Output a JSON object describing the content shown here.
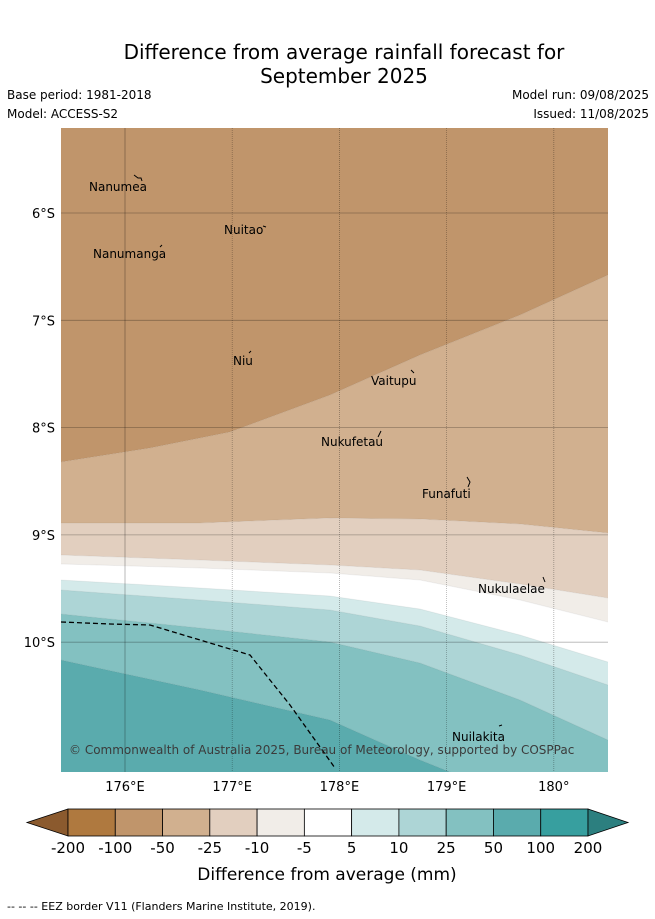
{
  "title_line1": "Difference from average rainfall forecast for",
  "title_line2": "September 2025",
  "base_period": "Base period: 1981-2018",
  "model": "Model: ACCESS-S2",
  "model_run": "Model run: 09/08/2025",
  "issued": "Issued: 11/08/2025",
  "copyright": "© Commonwealth of Australia 2025, Bureau of Meteorology, supported by COSPPac",
  "footer": "-- -- -- EEZ border V11 (Flanders Marine Institute, 2019).",
  "lat_labels": [
    "6°S",
    "7°S",
    "8°S",
    "9°S",
    "10°S"
  ],
  "lon_labels": [
    "176°E",
    "177°E",
    "178°E",
    "179°E",
    "180°"
  ],
  "places": [
    {
      "name": "Nanumea",
      "lon": 175.85,
      "lat": -5.68
    },
    {
      "name": "Nuitao",
      "lon": 177.15,
      "lat": -6.11
    },
    {
      "name": "Nanumanga",
      "lon": 176.3,
      "lat": -6.3
    },
    {
      "name": "Niu",
      "lon": 177.15,
      "lat": -7.31
    },
    {
      "name": "Vaitupu",
      "lon": 178.68,
      "lat": -7.48
    },
    {
      "name": "Nukufetau",
      "lon": 178.38,
      "lat": -8.03
    },
    {
      "name": "Funafuti",
      "lon": 179.2,
      "lat": -8.52
    },
    {
      "name": "Nukulaelae",
      "lon": 179.83,
      "lat": -9.38
    },
    {
      "name": "Nuilakita",
      "lon": 179.5,
      "lat": -10.78
    }
  ],
  "colorbar": {
    "title": "Difference from average (mm)",
    "tick_labels": [
      "-200",
      "-100",
      "-50",
      "-25",
      "-10",
      "-5",
      "5",
      "10",
      "25",
      "50",
      "100",
      "200"
    ],
    "colors": [
      "#af793f",
      "#c0956b",
      "#d1b08f",
      "#e2cfbf",
      "#f1ede8",
      "#ffffff",
      "#d4eaea",
      "#add5d6",
      "#83c1c1",
      "#5aabad",
      "#379f9f"
    ],
    "extend_low": "#8b5a2e",
    "extend_high": "#2c7f7f"
  },
  "map_fills": [
    "#c0956b",
    "#d1b08f",
    "#e2cfbf",
    "#f1ede8",
    "#ffffff",
    "#d4eaea",
    "#add5d6",
    "#83c1c1",
    "#5aabad"
  ]
}
